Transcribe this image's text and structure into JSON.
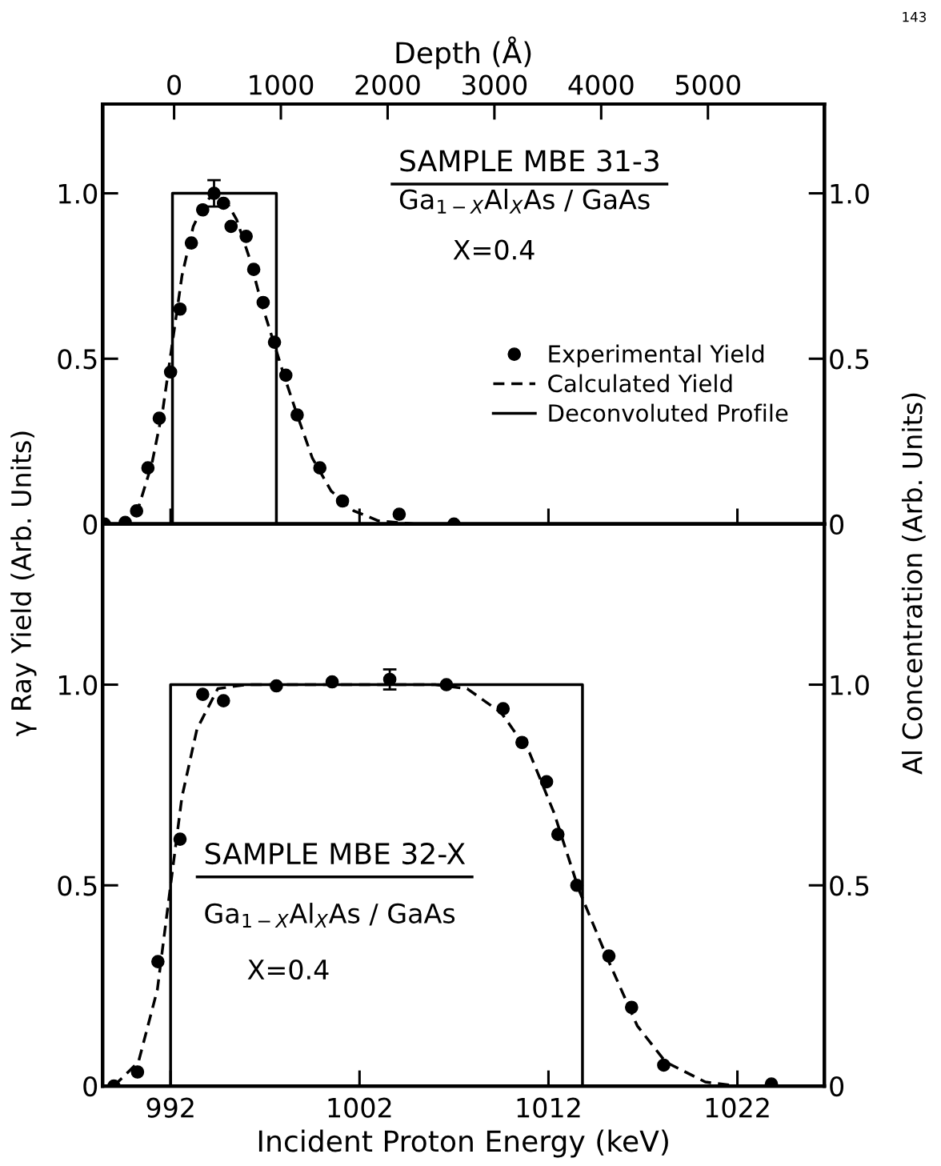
{
  "chart_data": [
    {
      "type": "scatter",
      "x2label": "Depth (Å)",
      "ylabel": "γ Ray Yield (Arb. Units)",
      "y2label": "Al Concentration (Arb. Units)",
      "annotations": [
        "SAMPLE MBE 31-3",
        "Ga$_{1−X}$Al$_{X}$As / GaAs",
        "X=0.4",
        "143"
      ],
      "xlim": [
        988.4,
        1026.6
      ],
      "xticks": [
        {
          "value": 992,
          "label": null
        },
        {
          "value": 1002,
          "label": null
        },
        {
          "value": 1012,
          "label": null
        },
        {
          "value": 1022,
          "label": null
        }
      ],
      "x2lim": [
        -670,
        6090
      ],
      "x2ticks": [
        0,
        1000,
        2000,
        3000,
        4000,
        5000
      ],
      "ylim": [
        0,
        1.27
      ],
      "yticks": [
        0,
        0.5,
        {
          "value": 1,
          "label": "1.0"
        }
      ],
      "y2lim": [
        0,
        1.27
      ],
      "y2ticks": [
        0,
        0.5,
        {
          "value": 1,
          "label": "1.0"
        }
      ],
      "tick_labels": "y",
      "legend": "center right",
      "grid": false,
      "series": [
        {
          "name": "Experimental Yield",
          "marker": "circle",
          "color": "#000000",
          "x": [
            988.5,
            989.6,
            990.2,
            990.8,
            991.4,
            992.0,
            992.5,
            993.1,
            993.7,
            994.3,
            994.8,
            995.2,
            996.0,
            996.4,
            996.9,
            997.5,
            998.1,
            998.7,
            999.9,
            1001.1,
            1004.1,
            1007.0
          ],
          "values": [
            0.0,
            0.005,
            0.04,
            0.17,
            0.32,
            0.46,
            0.65,
            0.85,
            0.95,
            1.0,
            0.97,
            0.9,
            0.87,
            0.77,
            0.67,
            0.55,
            0.45,
            0.33,
            0.17,
            0.07,
            0.03,
            0.0
          ],
          "errors": [
            null,
            null,
            null,
            null,
            null,
            null,
            null,
            null,
            null,
            0.04,
            null,
            null,
            null,
            null,
            null,
            null,
            null,
            null,
            null,
            null,
            null,
            null
          ]
        },
        {
          "name": "Calculated Yield",
          "type": "line",
          "line_style": "dashed",
          "color": "#000000",
          "x": [
            988.4,
            989.5,
            990.3,
            991.0,
            991.6,
            992.1,
            992.6,
            993.2,
            993.8,
            994.3,
            994.9,
            995.5,
            996.2,
            996.8,
            997.4,
            998.0,
            998.7,
            999.5,
            1000.5,
            1001.7,
            1003.0,
            1005.0,
            1007.0
          ],
          "values": [
            0.0,
            0.0,
            0.05,
            0.18,
            0.35,
            0.55,
            0.75,
            0.9,
            0.97,
            1.0,
            0.98,
            0.92,
            0.8,
            0.67,
            0.56,
            0.45,
            0.33,
            0.2,
            0.1,
            0.04,
            0.01,
            0.0,
            0.0
          ]
        },
        {
          "name": "Deconvoluted Profile",
          "type": "line",
          "line_style": "solid",
          "color": "#000000",
          "x": [
            992.1,
            992.1,
            997.6,
            997.6
          ],
          "values": [
            0,
            1,
            1,
            0
          ]
        }
      ]
    },
    {
      "type": "scatter",
      "xlabel": "Incident Proton Energy (keV)",
      "annotations": [
        "SAMPLE MBE 32-X",
        "Ga$_{1−X}$Al$_{X}$As / GaAs",
        "X=0.4"
      ],
      "xlim": [
        988.4,
        1026.6
      ],
      "xticks": [
        992,
        1002,
        1012,
        1022
      ],
      "ylim": [
        0,
        1.4
      ],
      "yticks": [
        0,
        0.5,
        {
          "value": 1,
          "label": "1.0"
        }
      ],
      "y2lim": [
        0,
        1.4
      ],
      "y2ticks": [
        0,
        0.5,
        {
          "value": 1,
          "label": "1.0"
        }
      ],
      "grid": false,
      "series": [
        {
          "marker": "circle",
          "color": "#000000",
          "x": [
            989.0,
            990.25,
            991.33,
            992.5,
            993.7,
            994.8,
            997.6,
            1000.55,
            1003.6,
            1006.6,
            1009.6,
            1010.6,
            1011.9,
            1012.5,
            1013.5,
            1015.2,
            1016.4,
            1018.1,
            1023.8
          ],
          "values": [
            0.0,
            0.035,
            0.31,
            0.615,
            0.976,
            0.96,
            0.997,
            1.007,
            1.013,
            1.0,
            0.94,
            0.856,
            0.758,
            0.627,
            0.5,
            0.324,
            0.196,
            0.052,
            0.005
          ],
          "errors": [
            null,
            null,
            null,
            null,
            null,
            null,
            null,
            null,
            0.025,
            null,
            null,
            null,
            null,
            null,
            null,
            null,
            null,
            null,
            null
          ]
        },
        {
          "type": "line",
          "line_style": "dashed",
          "color": "#000000",
          "x": [
            989.0,
            990.3,
            991.3,
            992.0,
            992.6,
            993.4,
            994.5,
            996.0,
            1006.0,
            1007.7,
            1009.5,
            1011.0,
            1012.3,
            1013.6,
            1015.1,
            1016.7,
            1018.2,
            1020.3,
            1022.0
          ],
          "values": [
            0.0,
            0.06,
            0.24,
            0.5,
            0.72,
            0.89,
            0.99,
            1.0,
            1.0,
            0.99,
            0.93,
            0.83,
            0.68,
            0.49,
            0.32,
            0.15,
            0.06,
            0.01,
            0.0
          ]
        },
        {
          "type": "line",
          "line_style": "solid",
          "color": "#000000",
          "x": [
            992.0,
            992.0,
            1013.8,
            1013.8
          ],
          "values": [
            0,
            1,
            1,
            0
          ]
        }
      ]
    }
  ]
}
